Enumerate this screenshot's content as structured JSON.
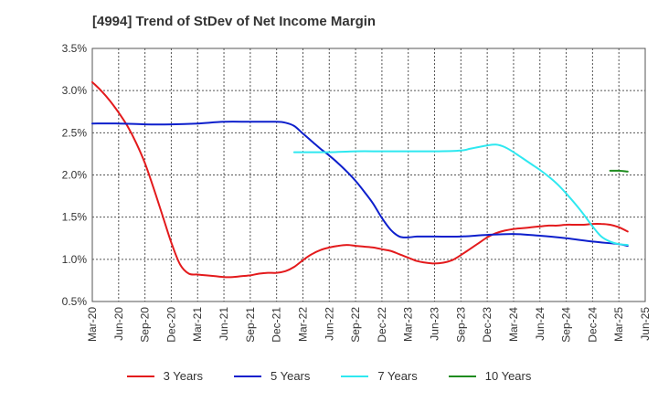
{
  "chart_data": {
    "type": "line",
    "title": "[4994]  Trend of StDev of Net Income Margin",
    "xlabel": "",
    "ylabel": "",
    "ylim": [
      0.5,
      3.5
    ],
    "y_ticks": [
      "0.5%",
      "1.0%",
      "1.5%",
      "2.0%",
      "2.5%",
      "3.0%",
      "3.5%"
    ],
    "y_tick_values": [
      0.5,
      1.0,
      1.5,
      2.0,
      2.5,
      3.0,
      3.5
    ],
    "x_ticks": [
      "Mar-20",
      "Jun-20",
      "Sep-20",
      "Dec-20",
      "Mar-21",
      "Jun-21",
      "Sep-21",
      "Dec-21",
      "Mar-22",
      "Jun-22",
      "Sep-22",
      "Dec-22",
      "Mar-23",
      "Jun-23",
      "Sep-23",
      "Dec-23",
      "Mar-24",
      "Jun-24",
      "Sep-24",
      "Dec-24",
      "Mar-25",
      "Jun-25"
    ],
    "grid": true,
    "legend_position": "bottom",
    "series": [
      {
        "name": "3 Years",
        "color": "#e31a1c",
        "points": [
          [
            "Mar-20",
            3.1
          ],
          [
            "Apr-20",
            3.0
          ],
          [
            "May-20",
            2.88
          ],
          [
            "Jun-20",
            2.74
          ],
          [
            "Jul-20",
            2.58
          ],
          [
            "Aug-20",
            2.38
          ],
          [
            "Sep-20",
            2.14
          ],
          [
            "Oct-20",
            1.84
          ],
          [
            "Nov-20",
            1.52
          ],
          [
            "Dec-20",
            1.2
          ],
          [
            "Jan-21",
            0.94
          ],
          [
            "Feb-21",
            0.83
          ],
          [
            "Mar-21",
            0.82
          ],
          [
            "Apr-21",
            0.81
          ],
          [
            "May-21",
            0.8
          ],
          [
            "Jun-21",
            0.79
          ],
          [
            "Jul-21",
            0.79
          ],
          [
            "Aug-21",
            0.8
          ],
          [
            "Sep-21",
            0.81
          ],
          [
            "Oct-21",
            0.83
          ],
          [
            "Nov-21",
            0.84
          ],
          [
            "Dec-21",
            0.84
          ],
          [
            "Jan-22",
            0.86
          ],
          [
            "Feb-22",
            0.91
          ],
          [
            "Mar-22",
            0.99
          ],
          [
            "Apr-22",
            1.06
          ],
          [
            "May-22",
            1.11
          ],
          [
            "Jun-22",
            1.14
          ],
          [
            "Jul-22",
            1.16
          ],
          [
            "Aug-22",
            1.17
          ],
          [
            "Sep-22",
            1.16
          ],
          [
            "Oct-22",
            1.15
          ],
          [
            "Nov-22",
            1.14
          ],
          [
            "Dec-22",
            1.12
          ],
          [
            "Jan-23",
            1.1
          ],
          [
            "Feb-23",
            1.06
          ],
          [
            "Mar-23",
            1.02
          ],
          [
            "Apr-23",
            0.98
          ],
          [
            "May-23",
            0.96
          ],
          [
            "Jun-23",
            0.95
          ],
          [
            "Jul-23",
            0.96
          ],
          [
            "Aug-23",
            0.99
          ],
          [
            "Sep-23",
            1.05
          ],
          [
            "Oct-23",
            1.12
          ],
          [
            "Nov-23",
            1.19
          ],
          [
            "Dec-23",
            1.26
          ],
          [
            "Jan-24",
            1.31
          ],
          [
            "Feb-24",
            1.34
          ],
          [
            "Mar-24",
            1.36
          ],
          [
            "Apr-24",
            1.37
          ],
          [
            "May-24",
            1.38
          ],
          [
            "Jun-24",
            1.39
          ],
          [
            "Jul-24",
            1.4
          ],
          [
            "Aug-24",
            1.4
          ],
          [
            "Sep-24",
            1.41
          ],
          [
            "Oct-24",
            1.41
          ],
          [
            "Nov-24",
            1.41
          ],
          [
            "Dec-24",
            1.42
          ],
          [
            "Jan-25",
            1.42
          ],
          [
            "Feb-25",
            1.41
          ],
          [
            "Mar-25",
            1.38
          ],
          [
            "Apr-25",
            1.33
          ]
        ]
      },
      {
        "name": "5 Years",
        "color": "#0d1fcc",
        "points": [
          [
            "Mar-20",
            2.61
          ],
          [
            "Jun-20",
            2.61
          ],
          [
            "Sep-20",
            2.6
          ],
          [
            "Dec-20",
            2.6
          ],
          [
            "Mar-21",
            2.61
          ],
          [
            "Jun-21",
            2.63
          ],
          [
            "Sep-21",
            2.63
          ],
          [
            "Dec-21",
            2.63
          ],
          [
            "Jan-22",
            2.62
          ],
          [
            "Feb-22",
            2.58
          ],
          [
            "Mar-22",
            2.49
          ],
          [
            "Apr-22",
            2.4
          ],
          [
            "May-22",
            2.31
          ],
          [
            "Jun-22",
            2.23
          ],
          [
            "Jul-22",
            2.14
          ],
          [
            "Aug-22",
            2.04
          ],
          [
            "Sep-22",
            1.93
          ],
          [
            "Oct-22",
            1.8
          ],
          [
            "Nov-22",
            1.66
          ],
          [
            "Dec-22",
            1.49
          ],
          [
            "Jan-23",
            1.35
          ],
          [
            "Feb-23",
            1.27
          ],
          [
            "Mar-23",
            1.26
          ],
          [
            "Apr-23",
            1.27
          ],
          [
            "Jun-23",
            1.27
          ],
          [
            "Sep-23",
            1.27
          ],
          [
            "Dec-23",
            1.29
          ],
          [
            "Mar-24",
            1.3
          ],
          [
            "Jun-24",
            1.28
          ],
          [
            "Sep-24",
            1.25
          ],
          [
            "Dec-24",
            1.21
          ],
          [
            "Mar-25",
            1.18
          ],
          [
            "Apr-25",
            1.16
          ]
        ]
      },
      {
        "name": "7 Years",
        "color": "#2ee8f0",
        "points": [
          [
            "Feb-22",
            2.27
          ],
          [
            "Mar-22",
            2.27
          ],
          [
            "Jun-22",
            2.27
          ],
          [
            "Sep-22",
            2.28
          ],
          [
            "Dec-22",
            2.28
          ],
          [
            "Mar-23",
            2.28
          ],
          [
            "Jun-23",
            2.28
          ],
          [
            "Sep-23",
            2.29
          ],
          [
            "Oct-23",
            2.31
          ],
          [
            "Nov-23",
            2.33
          ],
          [
            "Dec-23",
            2.35
          ],
          [
            "Jan-24",
            2.36
          ],
          [
            "Feb-24",
            2.33
          ],
          [
            "Mar-24",
            2.27
          ],
          [
            "Apr-24",
            2.2
          ],
          [
            "May-24",
            2.13
          ],
          [
            "Jun-24",
            2.06
          ],
          [
            "Jul-24",
            1.98
          ],
          [
            "Aug-24",
            1.89
          ],
          [
            "Sep-24",
            1.78
          ],
          [
            "Oct-24",
            1.66
          ],
          [
            "Nov-24",
            1.53
          ],
          [
            "Dec-24",
            1.39
          ],
          [
            "Jan-25",
            1.27
          ],
          [
            "Feb-25",
            1.21
          ],
          [
            "Mar-25",
            1.18
          ],
          [
            "Apr-25",
            1.17
          ]
        ]
      },
      {
        "name": "10 Years",
        "color": "#1e8c1e",
        "points": [
          [
            "Feb-25",
            2.05
          ],
          [
            "Mar-25",
            2.05
          ],
          [
            "Apr-25",
            2.04
          ]
        ]
      }
    ]
  }
}
